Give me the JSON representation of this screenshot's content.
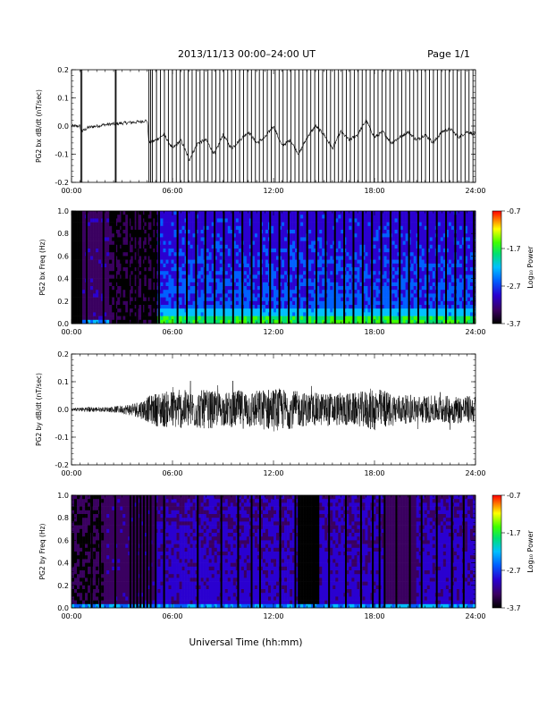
{
  "header": {
    "title": "2013/11/13  00:00–24:00 UT",
    "page": "Page 1/1"
  },
  "xaxis": {
    "title": "Universal Time (hh:mm)",
    "ticks": [
      "00:00",
      "06:00",
      "12:00",
      "18:00",
      "24:00"
    ]
  },
  "chart_data": [
    {
      "type": "line",
      "name": "panel-bx",
      "ylabel": "PG2 bx dB/dt (nT/sec)",
      "xlim": [
        0,
        24
      ],
      "ylim": [
        -0.2,
        0.2
      ],
      "yticks": [
        "0.2",
        "0.1",
        "0.0",
        "-0.1",
        "-0.2"
      ],
      "grid": false,
      "notes_visible": "dense full-range data gaps/spikes after ~05:00",
      "series": [
        {
          "x": [
            0.0,
            0.5,
            0.6,
            1.0,
            2.0,
            3.0,
            4.0,
            4.5,
            4.6,
            5.0,
            5.5,
            6.0,
            6.5,
            7.0,
            7.5,
            8.0,
            8.5,
            9.0,
            9.5,
            10.0,
            10.5,
            11.0,
            11.5,
            12.0,
            12.5,
            13.0,
            13.5,
            14.0,
            14.5,
            15.0,
            15.5,
            16.0,
            16.5,
            17.0,
            17.5,
            18.0,
            18.5,
            19.0,
            19.5,
            20.0,
            20.5,
            21.0,
            21.5,
            22.0,
            22.5,
            23.0,
            23.5,
            24.0
          ],
          "y": [
            0.0,
            0.0,
            -0.02,
            -0.005,
            0.005,
            0.01,
            0.015,
            0.02,
            -0.06,
            -0.05,
            -0.03,
            -0.08,
            -0.05,
            -0.12,
            -0.06,
            -0.05,
            -0.1,
            -0.03,
            -0.08,
            -0.05,
            -0.02,
            -0.06,
            -0.04,
            0.0,
            -0.07,
            -0.05,
            -0.1,
            -0.04,
            0.0,
            -0.03,
            -0.08,
            -0.02,
            -0.05,
            -0.03,
            0.02,
            -0.04,
            -0.02,
            -0.06,
            -0.04,
            -0.02,
            -0.05,
            -0.03,
            -0.06,
            -0.02,
            -0.01,
            -0.04,
            -0.02,
            -0.03
          ]
        }
      ]
    },
    {
      "type": "heatmap",
      "name": "panel-bx-spectrogram",
      "ylabel": "PG2 bx Freq (Hz)",
      "xlim": [
        0,
        24
      ],
      "ylim": [
        0.0,
        1.0
      ],
      "yticks": [
        "1.0",
        "0.8",
        "0.6",
        "0.4",
        "0.2",
        "0.0"
      ],
      "colorbar": {
        "label": "Log₁₀ Power",
        "ticks": [
          "-0.7",
          "-1.7",
          "-2.7",
          "-3.7"
        ],
        "range": [
          -3.7,
          -0.7
        ]
      }
    },
    {
      "type": "line",
      "name": "panel-by",
      "ylabel": "PG2 by dB/dt (nT/sec)",
      "xlim": [
        0,
        24
      ],
      "ylim": [
        -0.2,
        0.2
      ],
      "yticks": [
        "0.2",
        "0.1",
        "0.0",
        "-0.1",
        "-0.2"
      ],
      "grid": false,
      "series": [
        {
          "x": [
            0.0,
            1.0,
            2.0,
            3.0,
            4.0,
            5.0,
            6.0,
            7.0,
            8.0,
            9.0,
            10.0,
            11.0,
            12.0,
            13.0,
            14.0,
            15.0,
            16.0,
            17.0,
            18.0,
            19.0,
            20.0,
            21.0,
            22.0,
            23.0,
            24.0
          ],
          "envelope": [
            0.005,
            0.01,
            0.008,
            0.015,
            0.03,
            0.06,
            0.07,
            0.07,
            0.07,
            0.06,
            0.07,
            0.07,
            0.08,
            0.07,
            0.06,
            0.06,
            0.06,
            0.06,
            0.08,
            0.06,
            0.05,
            0.05,
            0.05,
            0.05,
            0.05
          ]
        }
      ]
    },
    {
      "type": "heatmap",
      "name": "panel-by-spectrogram",
      "ylabel": "PG2 by Freq (Hz)",
      "xlim": [
        0,
        24
      ],
      "ylim": [
        0.0,
        1.0
      ],
      "yticks": [
        "1.0",
        "0.8",
        "0.6",
        "0.4",
        "0.2",
        "0.0"
      ],
      "colorbar": {
        "label": "Log₁₀ Power",
        "ticks": [
          "-0.7",
          "-1.7",
          "-2.7",
          "-3.7"
        ],
        "range": [
          -3.7,
          -0.7
        ]
      }
    }
  ]
}
